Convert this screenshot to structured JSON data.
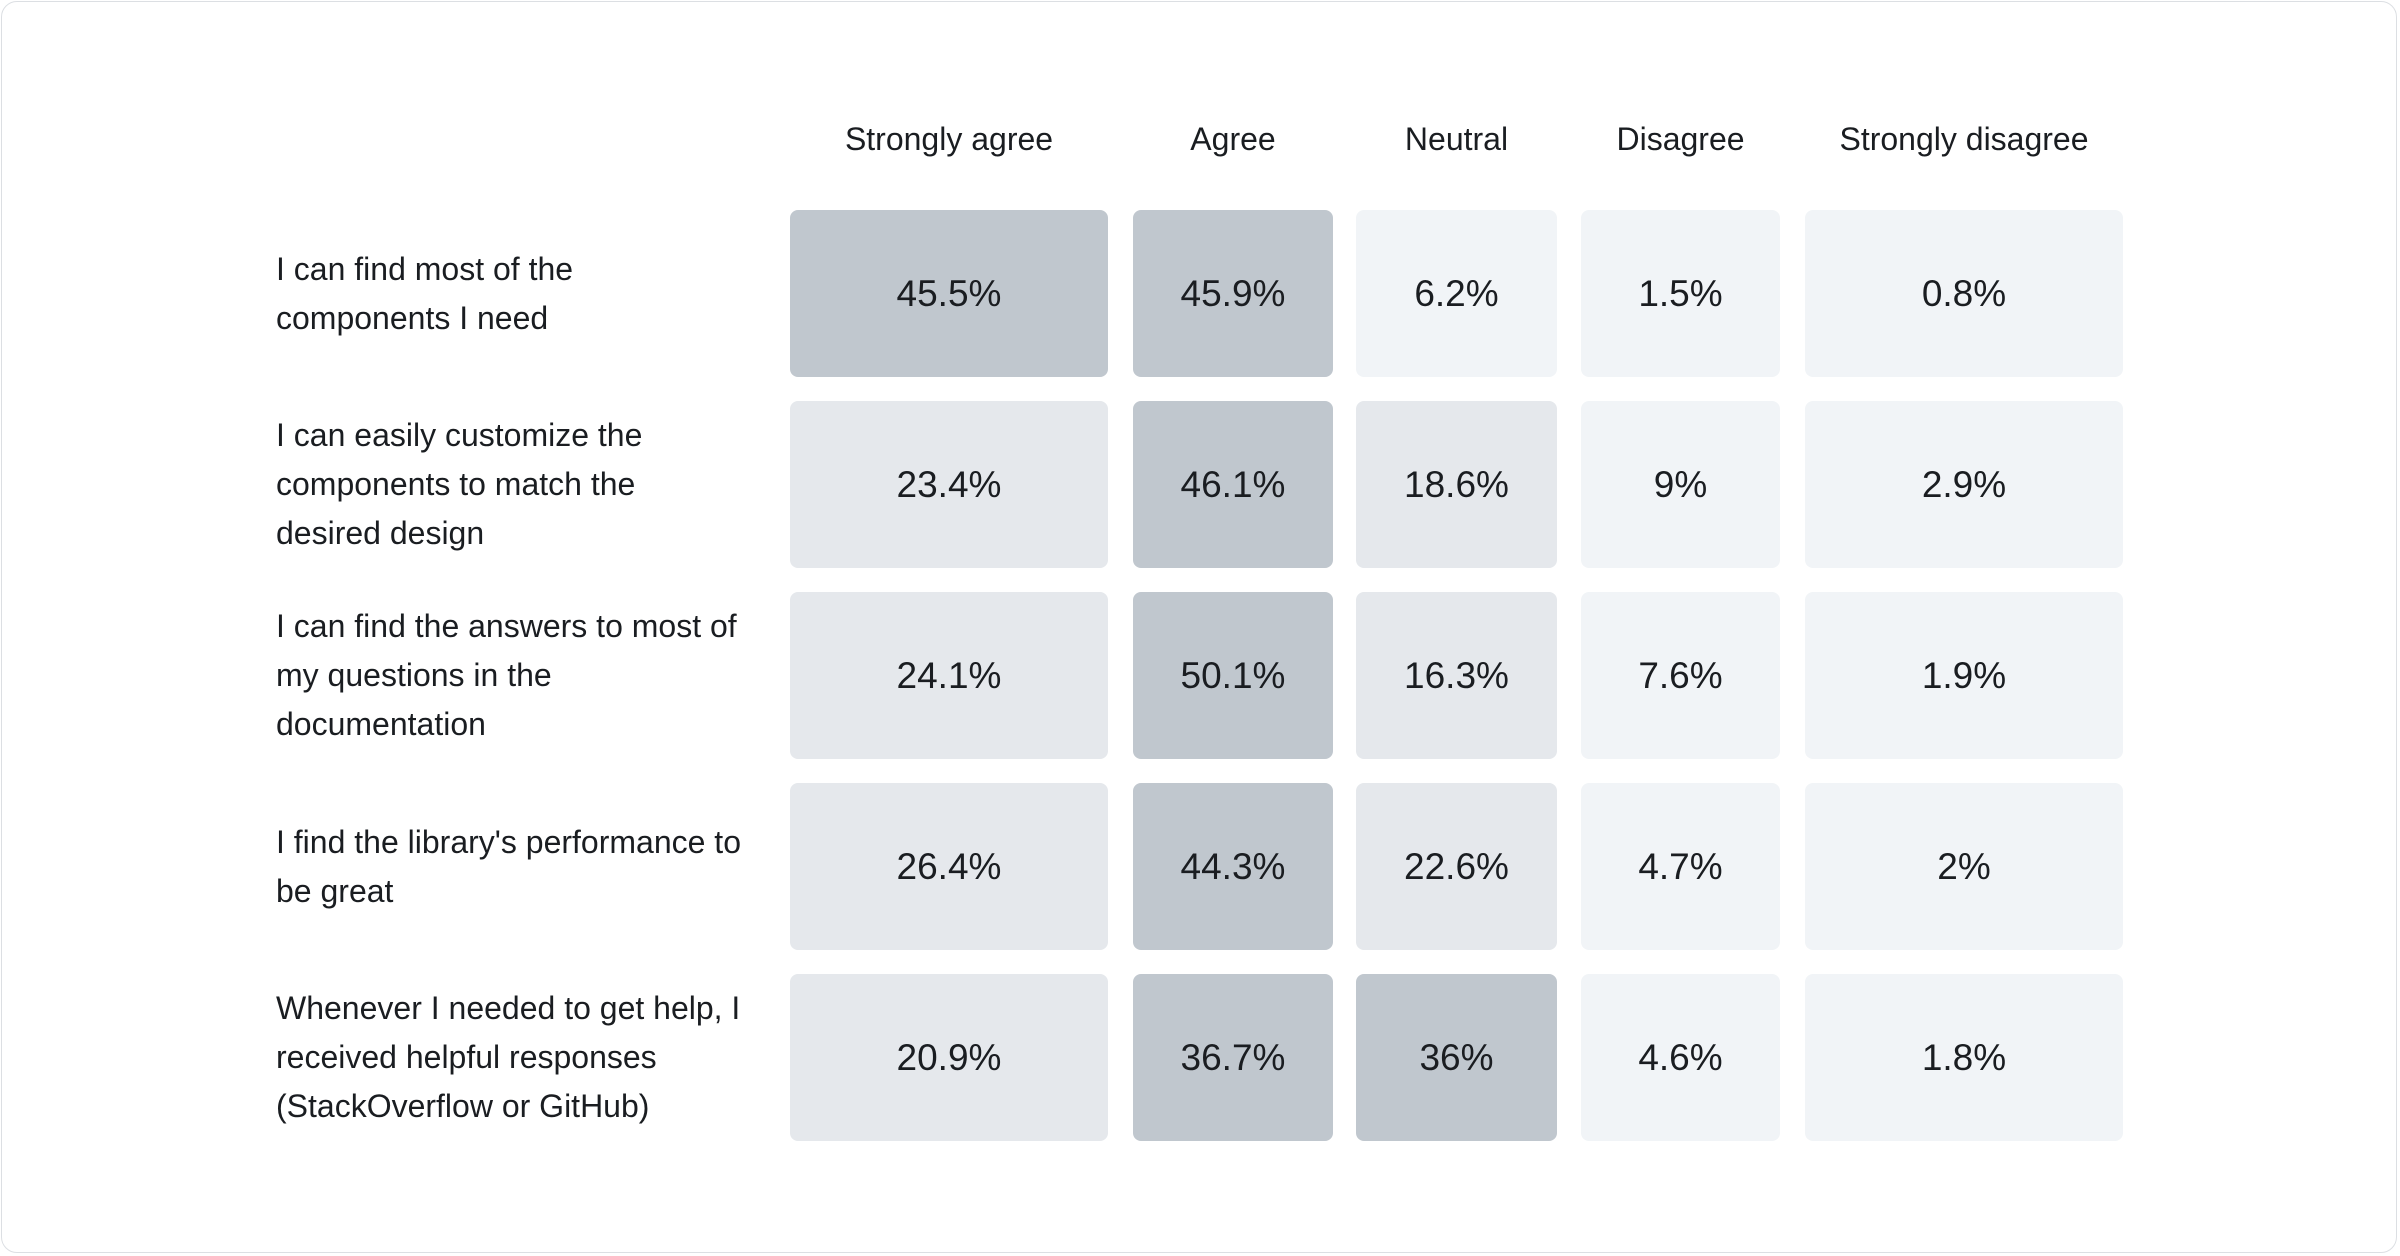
{
  "table": {
    "columns": [
      "Strongly agree",
      "Agree",
      "Neutral",
      "Disagree",
      "Strongly disagree"
    ],
    "rows": [
      {
        "label": "I can find most of the components I need",
        "cells": [
          "45.5%",
          "45.9%",
          "6.2%",
          "1.5%",
          "0.8%"
        ]
      },
      {
        "label": "I can easily customize the components to match the desired design",
        "cells": [
          "23.4%",
          "46.1%",
          "18.6%",
          "9%",
          "2.9%"
        ]
      },
      {
        "label": "I can find the answers to most of my questions in the documentation",
        "cells": [
          "24.1%",
          "50.1%",
          "16.3%",
          "7.6%",
          "1.9%"
        ]
      },
      {
        "label": "I find the library's performance to be great",
        "cells": [
          "26.4%",
          "44.3%",
          "22.6%",
          "4.7%",
          "2%"
        ]
      },
      {
        "label": "Whenever I needed to get help, I received helpful responses (StackOverflow or GitHub)",
        "cells": [
          "20.9%",
          "36.7%",
          "36%",
          "4.6%",
          "1.8%"
        ]
      }
    ]
  }
}
